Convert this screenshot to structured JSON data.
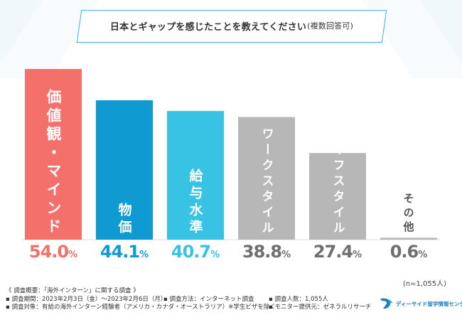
{
  "title": {
    "main": "日本とギャップを感じたことを教えてください",
    "sub": "(複数回答可)"
  },
  "chart_data": {
    "type": "bar",
    "title": "日本とギャップを感じたことを教えてください(複数回答可)",
    "categories": [
      "価値観・マインド",
      "物価",
      "給与水準",
      "ワークスタイル",
      "ライフスタイル",
      "その他"
    ],
    "values": [
      54.0,
      44.1,
      40.7,
      38.8,
      27.4,
      0.6
    ],
    "value_labels": [
      {
        "num": "54.0",
        "unit": "%"
      },
      {
        "num": "44.1",
        "unit": "%"
      },
      {
        "num": "40.7",
        "unit": "%"
      },
      {
        "num": "38.8",
        "unit": "%"
      },
      {
        "num": "27.4",
        "unit": "%"
      },
      {
        "num": "0.6",
        "unit": "%"
      }
    ],
    "colors": [
      "#f4706a",
      "#0f9bd1",
      "#38c2e3",
      "#b7b7b7",
      "#b7b7b7",
      "#b7b7b7"
    ],
    "value_colors": [
      "#f4706a",
      "#0f9bd1",
      "#38c2e3",
      "#6f6f6f",
      "#6f6f6f",
      "#6f6f6f"
    ],
    "label_colors": [
      "#ffffff",
      "#ffffff",
      "#ffffff",
      "#ffffff",
      "#ffffff",
      "#555555"
    ],
    "ylim": [
      0,
      54.0
    ],
    "xlabel": "",
    "ylabel": "",
    "unit": "%",
    "n_label": "(n=1,055人)"
  },
  "footer": {
    "overview": "《 調査概要：「海外インターン」に関する調査 》",
    "period": "▪ 調査期間：2023年2月3日（金）～2023年2月6日（月）",
    "method": "▪ 調査方法：インターネット調査",
    "count": "▪ 調査人数：1,055人",
    "target": "▪ 調査対象：有給の海外インターン経験者（アメリカ・カナダ・オーストラリア）※学生ビザを除く",
    "provider": "▪ モニター提供元：ゼネラルリサーチ"
  },
  "logo": {
    "text": "ディーサイド留学情報センター"
  },
  "colors": {
    "accent": "#38b9e0",
    "background_stripe": "#edf7fb"
  }
}
